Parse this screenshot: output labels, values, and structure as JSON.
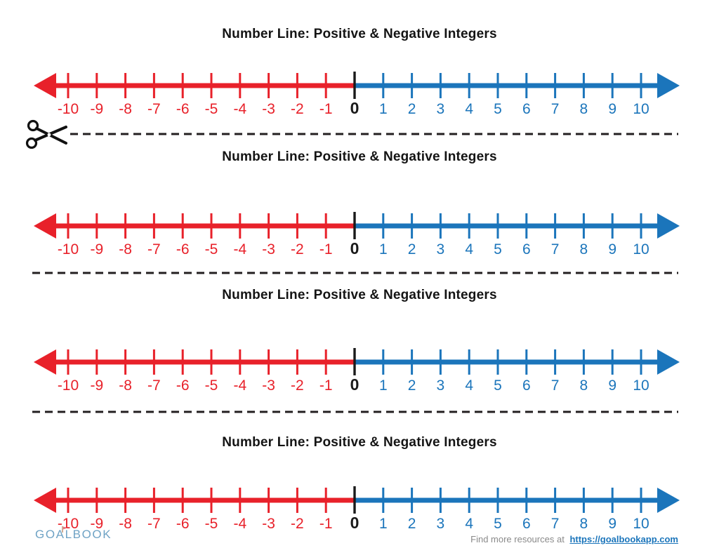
{
  "sections": [
    {
      "title": "Number Line: Positive & Negative Integers"
    },
    {
      "title": "Number Line: Positive & Negative Integers"
    },
    {
      "title": "Number Line: Positive & Negative Integers"
    },
    {
      "title": "Number Line: Positive & Negative Integers"
    }
  ],
  "number_line": {
    "min": -10,
    "max": 10,
    "values": [
      -10,
      -9,
      -8,
      -7,
      -6,
      -5,
      -4,
      -3,
      -2,
      -1,
      0,
      1,
      2,
      3,
      4,
      5,
      6,
      7,
      8,
      9,
      10
    ],
    "negative_color": "#e8212a",
    "positive_color": "#1b75bb",
    "zero_color": "#1a1a1a"
  },
  "separator": {
    "style": "dashed",
    "color": "#231f20",
    "icon": "scissors-icon"
  },
  "footer": {
    "logo_text": "GOALBOOK",
    "text": "Find more resources at",
    "link": "https://goalbookapp.com",
    "link_color": "#1b75bb",
    "flag_color": "#e8747c"
  }
}
